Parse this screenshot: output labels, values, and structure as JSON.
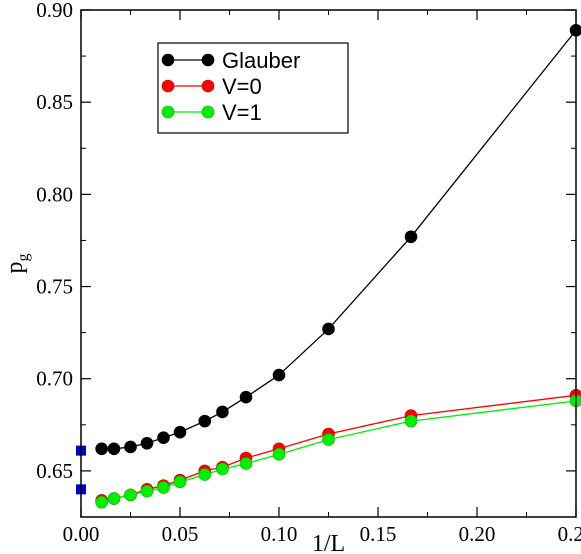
{
  "chart_data": {
    "type": "line",
    "xlabel": "1/L",
    "ylabel": "p",
    "ylabel_sub": "g",
    "xlim": [
      0.0,
      0.25
    ],
    "ylim": [
      0.625,
      0.9
    ],
    "xticks": [
      0.0,
      0.05,
      0.1,
      0.15,
      0.2,
      0.25
    ],
    "xtick_labels": [
      "0.00",
      "0.05",
      "0.10",
      "0.15",
      "0.20",
      "0.25"
    ],
    "yticks": [
      0.65,
      0.7,
      0.75,
      0.8,
      0.85,
      0.9
    ],
    "ytick_labels": [
      "0.65",
      "0.70",
      "0.75",
      "0.80",
      "0.85",
      "0.90"
    ],
    "grid": false,
    "legend_position": "top-left",
    "x": [
      0.0104167,
      0.0166667,
      0.025,
      0.0333333,
      0.0416667,
      0.05,
      0.0625,
      0.0714286,
      0.0833333,
      0.1,
      0.125,
      0.1666667,
      0.25
    ],
    "series": [
      {
        "name": "Glauber",
        "color": "#000000",
        "values": [
          0.662,
          0.662,
          0.663,
          0.665,
          0.668,
          0.671,
          0.677,
          0.682,
          0.69,
          0.702,
          0.727,
          0.777,
          0.889
        ]
      },
      {
        "name": "V=0",
        "color": "#ff0000",
        "values": [
          0.634,
          0.635,
          0.637,
          0.64,
          0.642,
          0.645,
          0.65,
          0.652,
          0.657,
          0.662,
          0.67,
          0.68,
          0.691
        ]
      },
      {
        "name": "V=1",
        "color": "#00ee00",
        "values": [
          0.633,
          0.635,
          0.637,
          0.639,
          0.641,
          0.644,
          0.648,
          0.651,
          0.654,
          0.659,
          0.667,
          0.677,
          0.688
        ]
      }
    ],
    "extrapolated_points": {
      "color": "#0000cc",
      "x": [
        0.0,
        0.0
      ],
      "y": [
        0.661,
        0.64
      ]
    }
  }
}
